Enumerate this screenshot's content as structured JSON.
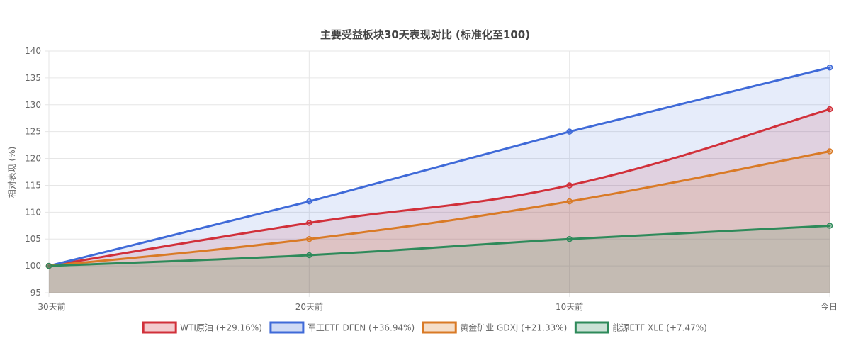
{
  "chart_data": {
    "type": "line",
    "title": "主要受益板块30天表现对比 (标准化至100)",
    "xlabel": "",
    "ylabel": "相对表现 (%)",
    "categories": [
      "30天前",
      "20天前",
      "10天前",
      "今日"
    ],
    "ylim": [
      95,
      140
    ],
    "yticks": [
      95,
      100,
      105,
      110,
      115,
      120,
      125,
      130,
      135,
      140
    ],
    "grid": true,
    "legend_position": "bottom",
    "series": [
      {
        "name": "WTI原油 (+29.16%)",
        "values": [
          100,
          108,
          115,
          129.16
        ],
        "color": "#d1303a",
        "fill": "rgba(209,48,58,0.15)",
        "smooth": true
      },
      {
        "name": "军工ETF DFEN (+36.94%)",
        "values": [
          100,
          112,
          125,
          136.94
        ],
        "color": "#3f6ad8",
        "fill": "rgba(63,106,216,0.13)",
        "smooth": false
      },
      {
        "name": "黄金矿业 GDXJ (+21.33%)",
        "values": [
          100,
          105,
          112,
          121.33
        ],
        "color": "#d97a26",
        "fill": "rgba(217,122,38,0.15)",
        "smooth": true
      },
      {
        "name": "能源ETF XLE (+7.47%)",
        "values": [
          100,
          102,
          105,
          107.47
        ],
        "color": "#2e8a5a",
        "fill": "rgba(46,138,90,0.15)",
        "smooth": true
      }
    ]
  }
}
